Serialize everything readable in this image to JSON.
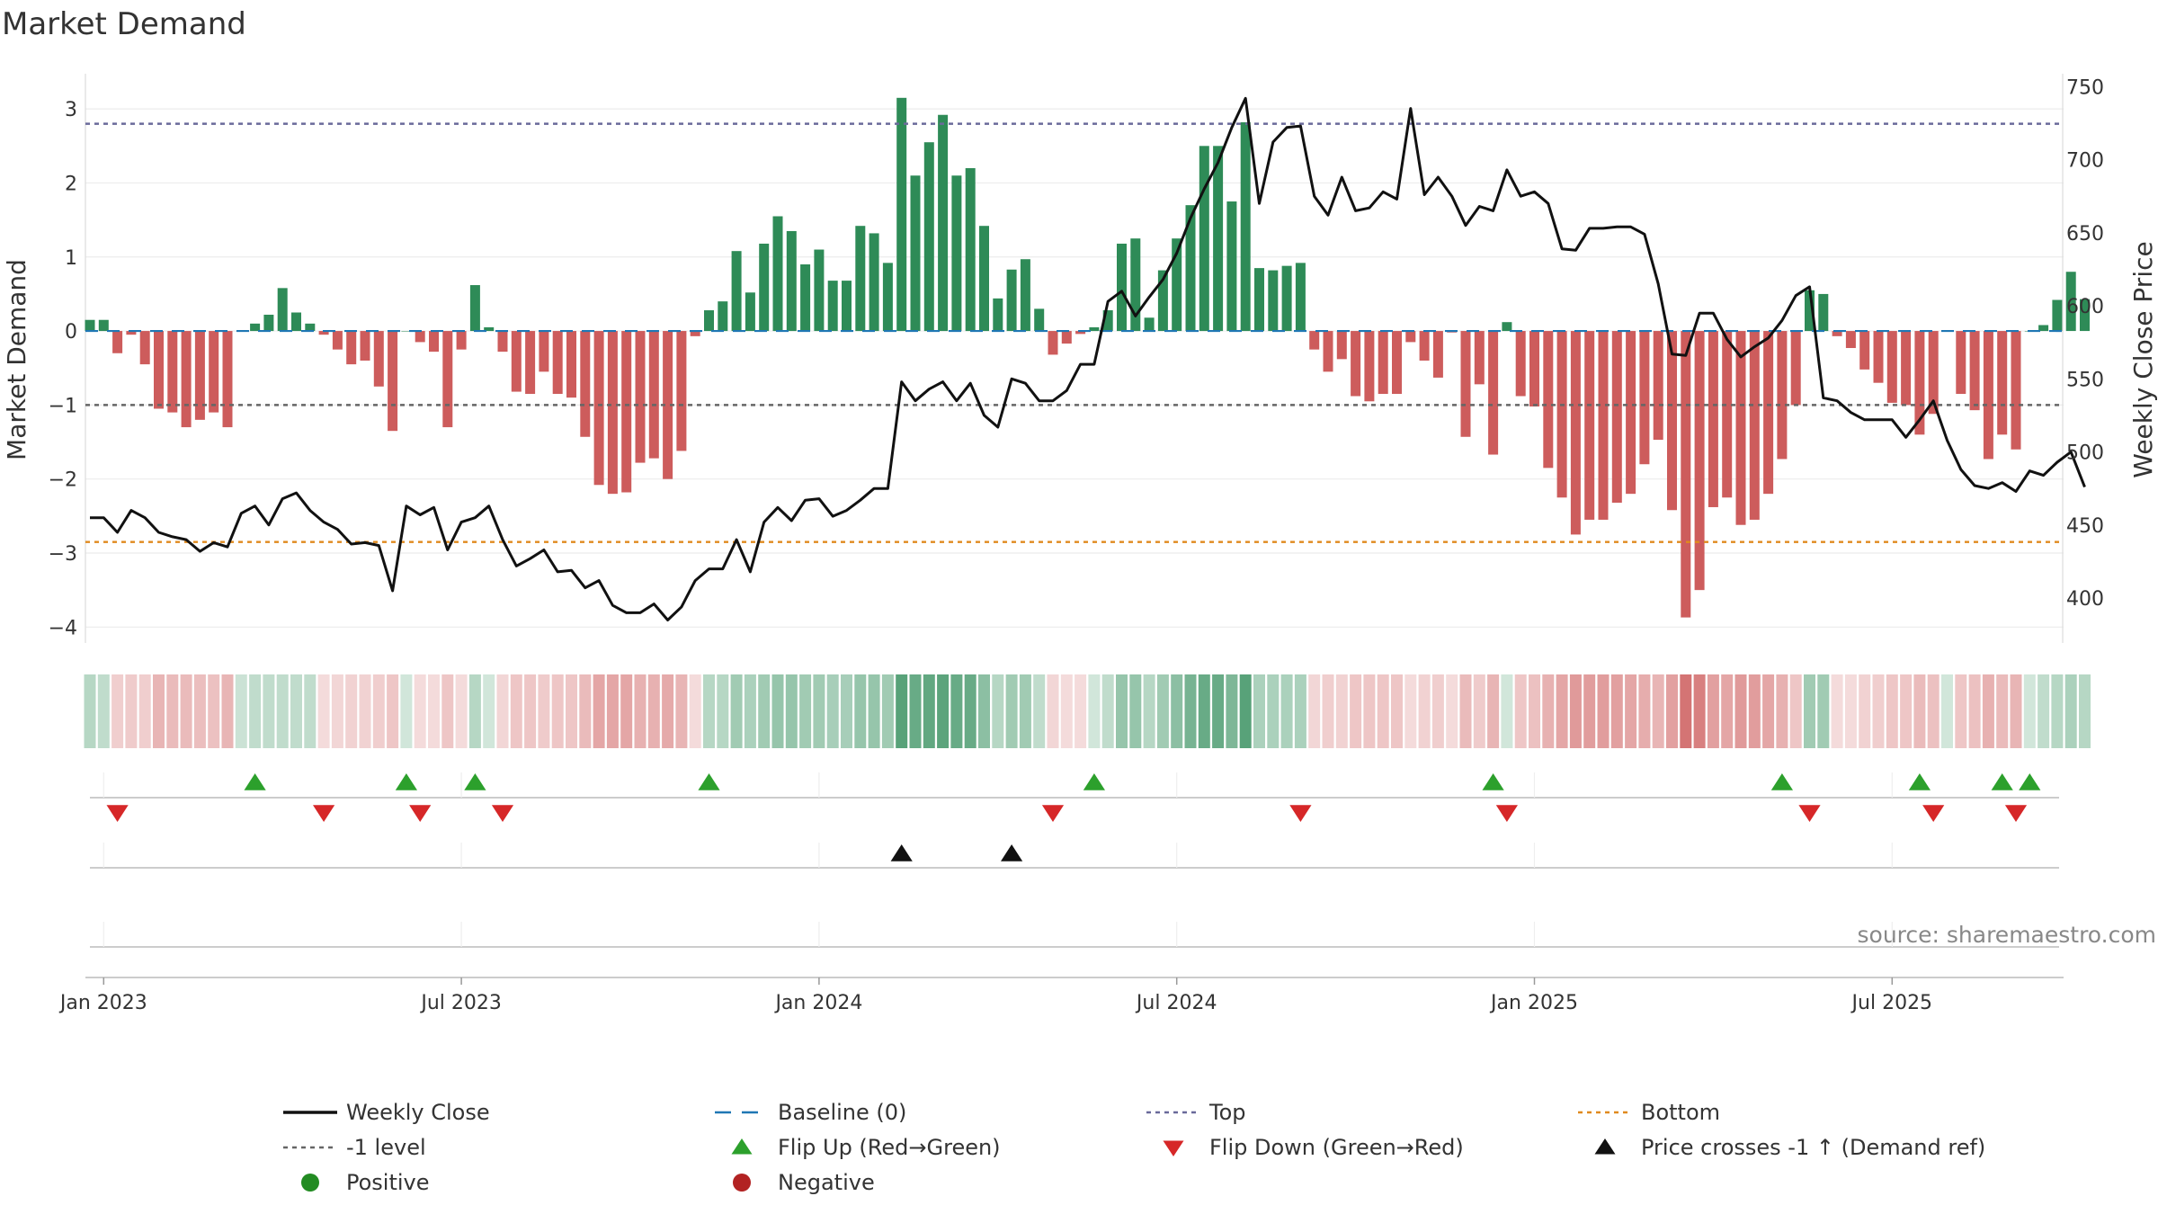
{
  "chart_data": {
    "type": "bar+line",
    "title": "Market Demand",
    "ylabel_left": "Market Demand",
    "ylabel_right": "Weekly Close Price",
    "ylim_left": [
      -4.3,
      3.5
    ],
    "ylim_right": [
      365,
      760
    ],
    "left_ticks": [
      "3",
      "2",
      "1",
      "0",
      "−1",
      "−2",
      "−3",
      "−4"
    ],
    "right_ticks": [
      "750",
      "700",
      "650",
      "600",
      "550",
      "500",
      "450",
      "400"
    ],
    "x_tick_labels": [
      "Jan 2023",
      "Jul 2023",
      "Jan 2024",
      "Jul 2024",
      "Jan 2025",
      "Jul 2025"
    ],
    "x_tick_weeks": [
      1,
      27,
      53,
      79,
      105,
      131
    ],
    "reference_lines": {
      "top": 2.8,
      "minus_one_level": -1.0,
      "bottom": -2.85,
      "baseline": 0
    },
    "demand": [
      0.15,
      0.15,
      -0.3,
      -0.05,
      -0.45,
      -1.05,
      -1.1,
      -1.3,
      -1.2,
      -1.1,
      -1.3,
      0,
      0.1,
      0.22,
      0.58,
      0.25,
      0.1,
      -0.05,
      -0.25,
      -0.45,
      -0.4,
      -0.75,
      -1.35,
      0,
      -0.15,
      -0.28,
      -1.3,
      -0.25,
      0.62,
      0.05,
      -0.28,
      -0.82,
      -0.85,
      -0.55,
      -0.85,
      -0.9,
      -1.43,
      -2.08,
      -2.2,
      -2.18,
      -1.78,
      -1.72,
      -2,
      -1.62,
      -0.07,
      0.28,
      0.4,
      1.08,
      0.52,
      1.18,
      1.55,
      1.35,
      0.9,
      1.1,
      0.68,
      0.68,
      1.42,
      1.32,
      0.92,
      3.15,
      2.1,
      2.55,
      2.92,
      2.1,
      2.2,
      1.42,
      0.44,
      0.83,
      0.97,
      0.3,
      -0.32,
      -0.17,
      -0.04,
      0.05,
      0.28,
      1.18,
      1.25,
      0.18,
      0.82,
      1.25,
      1.7,
      2.5,
      2.5,
      1.75,
      2.82,
      0.85,
      0.82,
      0.88,
      0.92,
      -0.25,
      -0.55,
      -0.38,
      -0.88,
      -0.95,
      -0.85,
      -0.85,
      -0.15,
      -0.4,
      -0.63,
      -0.02,
      -1.43,
      -0.72,
      -1.67,
      0.12,
      -0.88,
      -1.02,
      -1.85,
      -2.25,
      -2.75,
      -2.55,
      -2.55,
      -2.32,
      -2.2,
      -1.8,
      -1.47,
      -2.42,
      -3.87,
      -3.5,
      -2.38,
      -2.25,
      -2.62,
      -2.55,
      -2.2,
      -1.73,
      -1,
      0.55,
      0.5,
      -0.07,
      -0.23,
      -0.52,
      -0.7,
      -0.97,
      -1,
      -1.4,
      -1.12,
      0,
      -0.85,
      -1.07,
      -1.73,
      -1.4,
      -1.6,
      0,
      0.08,
      0.42,
      0.8,
      0.43
    ],
    "weekly_close": [
      455,
      455,
      445,
      460,
      455,
      445,
      442,
      440,
      432,
      438,
      435,
      458,
      463,
      450,
      468,
      472,
      460,
      452,
      447,
      437,
      438,
      436,
      405,
      463,
      457,
      462,
      433,
      452,
      455,
      463,
      440,
      422,
      427,
      433,
      418,
      419,
      407,
      412,
      395,
      390,
      390,
      396,
      385,
      394,
      412,
      420,
      420,
      440,
      418,
      452,
      462,
      453,
      467,
      468,
      456,
      460,
      467,
      475,
      475,
      548,
      535,
      543,
      548,
      535,
      547,
      525,
      517,
      550,
      547,
      535,
      535,
      542,
      560,
      560,
      603,
      610,
      593,
      606,
      618,
      636,
      660,
      680,
      698,
      722,
      742,
      670,
      712,
      722,
      723,
      675,
      662,
      688,
      665,
      667,
      678,
      673,
      735,
      676,
      688,
      675,
      655,
      668,
      665,
      693,
      675,
      678,
      670,
      639,
      638,
      653,
      653,
      654,
      654,
      649,
      615,
      567,
      566,
      595,
      595,
      577,
      565,
      572,
      578,
      590,
      607,
      613,
      537,
      535,
      527,
      522,
      522,
      522,
      510,
      522,
      535,
      508,
      488,
      477,
      475,
      479,
      473,
      487,
      484,
      493,
      500,
      476
    ],
    "heatmap_opacity": [
      0.35,
      0.3,
      0.3,
      0.32,
      0.3,
      0.45,
      0.42,
      0.42,
      0.4,
      0.38,
      0.45,
      0.25,
      0.3,
      0.3,
      0.3,
      0.3,
      0.3,
      0.22,
      0.25,
      0.28,
      0.28,
      0.3,
      0.35,
      0.22,
      0.22,
      0.22,
      0.35,
      0.22,
      0.35,
      0.22,
      0.25,
      0.35,
      0.35,
      0.32,
      0.35,
      0.35,
      0.42,
      0.55,
      0.55,
      0.55,
      0.48,
      0.48,
      0.52,
      0.45,
      0.22,
      0.35,
      0.35,
      0.45,
      0.4,
      0.45,
      0.5,
      0.5,
      0.45,
      0.45,
      0.42,
      0.42,
      0.5,
      0.5,
      0.45,
      0.8,
      0.72,
      0.75,
      0.78,
      0.72,
      0.72,
      0.55,
      0.35,
      0.45,
      0.45,
      0.3,
      0.25,
      0.22,
      0.22,
      0.22,
      0.3,
      0.5,
      0.5,
      0.35,
      0.45,
      0.55,
      0.65,
      0.72,
      0.72,
      0.62,
      0.8,
      0.4,
      0.4,
      0.4,
      0.4,
      0.25,
      0.3,
      0.28,
      0.35,
      0.35,
      0.35,
      0.35,
      0.22,
      0.28,
      0.3,
      0.22,
      0.42,
      0.32,
      0.45,
      0.22,
      0.35,
      0.38,
      0.48,
      0.55,
      0.62,
      0.6,
      0.6,
      0.58,
      0.55,
      0.5,
      0.45,
      0.58,
      0.85,
      0.78,
      0.58,
      0.55,
      0.62,
      0.6,
      0.55,
      0.48,
      0.35,
      0.45,
      0.45,
      0.22,
      0.22,
      0.28,
      0.3,
      0.35,
      0.35,
      0.42,
      0.38,
      0.22,
      0.35,
      0.38,
      0.48,
      0.42,
      0.45,
      0.22,
      0.3,
      0.35,
      0.4,
      0.35
    ],
    "flip_up_weeks": [
      12,
      23,
      28,
      45,
      73,
      102,
      123,
      133,
      139,
      141
    ],
    "flip_down_weeks": [
      2,
      17,
      24,
      30,
      70,
      88,
      103,
      125,
      134,
      140
    ],
    "price_cross_weeks": [
      59,
      67
    ],
    "legend": [
      "Weekly Close",
      "Baseline (0)",
      "Top",
      "Bottom",
      "-1 level",
      "Flip Up (Red→Green)",
      "Flip Down (Green→Red)",
      "Price crosses -1 ↑ (Demand ref)",
      "Positive",
      "Negative"
    ],
    "source": "source: sharemaestro.com",
    "colors": {
      "positive_bar": "#2e8b57",
      "negative_bar": "#cd5c5c",
      "line": "#111111",
      "top_line": "#6a6a9a",
      "minus_one_line": "#666666",
      "bottom_line": "#e08a1e",
      "baseline": "#1f77b4",
      "flip_up": "#2ca02c",
      "flip_down": "#d62728",
      "cross": "#111111",
      "positive_dot": "#228b22",
      "negative_dot": "#b22222"
    }
  }
}
